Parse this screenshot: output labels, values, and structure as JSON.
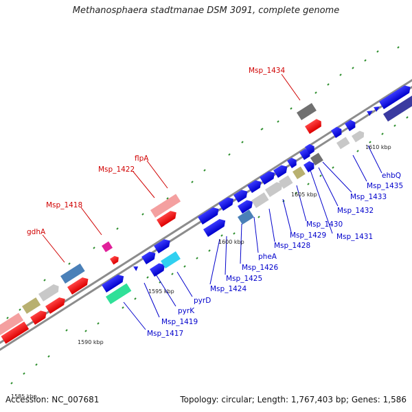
{
  "title": "Methanosphaera stadtmanae DSM 3091, complete genome",
  "footer": {
    "accession": "Accession: NC_007681",
    "summary": "Topology: circular; Length: 1,767,403 bp; Genes: 1,586"
  },
  "colors": {
    "backbone": "#8c8c8c",
    "label_red": "#d00000",
    "label_blue": "#0000cc",
    "tick": "#2f8f2f"
  },
  "scale_labels": [
    "1585 kbp",
    "1590 kbp",
    "1595 kbp",
    "1600 kbp",
    "1605 kbp",
    "1610 kbp"
  ],
  "labels_top": [
    "gdhA",
    "Msp_1418",
    "Msp_1422",
    "flpA",
    "Msp_1434"
  ],
  "labels_bottom": [
    "Msp_1417",
    "Msp_1419",
    "pyrK",
    "pyrD",
    "Msp_1424",
    "Msp_1425",
    "Msp_1426",
    "pheA",
    "Msp_1428",
    "Msp_1429",
    "Msp_1430",
    "Msp_1431",
    "Msp_1432",
    "Msp_1433",
    "Msp_1435",
    "ehbQ"
  ]
}
